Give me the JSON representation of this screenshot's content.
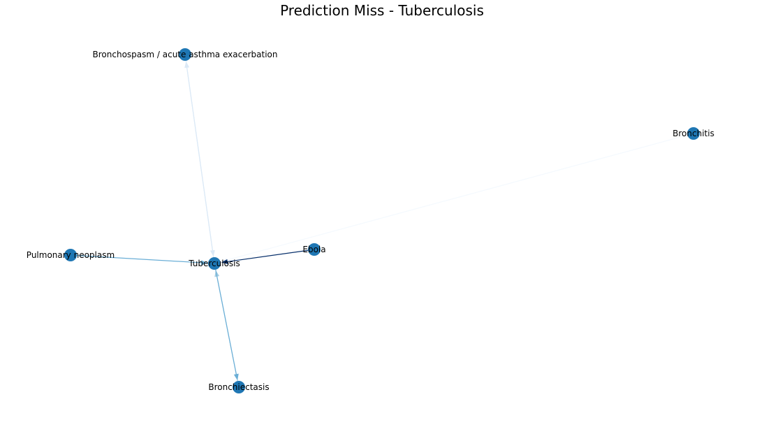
{
  "title": "Prediction Miss - Tuberculosis",
  "colors": {
    "node": "#1f77b4",
    "label": "#000000",
    "background": "#ffffff"
  },
  "nodes": [
    {
      "id": "bronchospasm",
      "label": "Bronchospasm / acute asthma exacerbation"
    },
    {
      "id": "bronchitis",
      "label": "Bronchitis"
    },
    {
      "id": "pulmonary_neoplasm",
      "label": "Pulmonary neoplasm"
    },
    {
      "id": "tuberculosis",
      "label": "Tuberculosis"
    },
    {
      "id": "ebola",
      "label": "Ebola"
    },
    {
      "id": "bronchiectasis",
      "label": "Bronchiectasis"
    }
  ],
  "edges": [
    {
      "source": "bronchospasm",
      "target": "tuberculosis",
      "color": "#dbe9f6"
    },
    {
      "source": "tuberculosis",
      "target": "bronchospasm",
      "color": "#dbe9f6"
    },
    {
      "source": "bronchitis",
      "target": "tuberculosis",
      "color": "#f4f9fe"
    },
    {
      "source": "pulmonary_neoplasm",
      "target": "tuberculosis",
      "color": "#6aaed6"
    },
    {
      "source": "ebola",
      "target": "tuberculosis",
      "color": "#08306b"
    },
    {
      "source": "bronchiectasis",
      "target": "tuberculosis",
      "color": "#a6cee3"
    },
    {
      "source": "tuberculosis",
      "target": "bronchiectasis",
      "color": "#6aaed6"
    }
  ]
}
